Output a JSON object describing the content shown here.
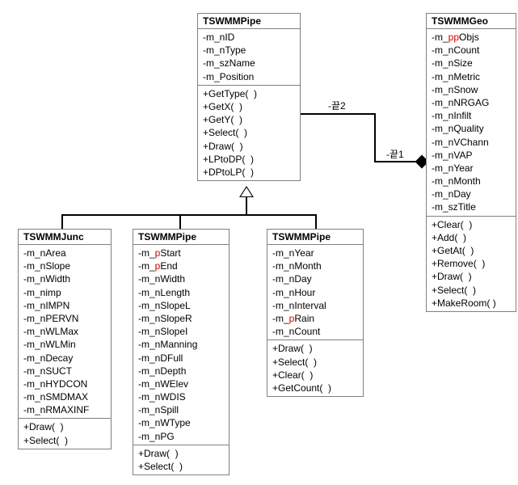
{
  "classes": {
    "parent": {
      "title": "TSWMMPipe",
      "attrs": [
        "-m_nID",
        "-m_nType",
        "-m_szName",
        "-m_Position"
      ],
      "ops": [
        "+GetType(  )",
        "+GetX(  )",
        "+GetY(  )",
        "+Select(  )",
        "+Draw(  )",
        "+LPtoDP(  )",
        "+DPtoLP(  )"
      ]
    },
    "geo": {
      "title": "TSWMMGeo",
      "attrs": [
        "-m_ppObjs",
        "-m_nCount",
        "-m_nSize",
        "-m_nMetric",
        "-m_nSnow",
        "-m_nNRGAG",
        "-m_nInfilt",
        "-m_nQuality",
        "-m_nVChann",
        "-m_nVAP",
        "-m_nYear",
        "-m_nMonth",
        "-m_nDay",
        "-m_szTitle"
      ],
      "ops": [
        "+Clear(  )",
        "+Add(  )",
        "+GetAt(  )",
        "+Remove(  )",
        "+Draw(  )",
        "+Select(  )",
        "+MakeRoom( )"
      ]
    },
    "junc": {
      "title": "TSWMMJunc",
      "attrs": [
        "-m_nArea",
        "-m_nSlope",
        "-m_nWidth",
        "-m_nimp",
        "-m_nIMPN",
        "-m_nPERVN",
        "-m_nWLMax",
        "-m_nWLMin",
        "-m_nDecay",
        "-m_nSUCT",
        "-m_nHYDCON",
        "-m_nSMDMAX",
        "-m_nRMAXINF"
      ],
      "ops": [
        "+Draw(  )",
        "+Select(  )"
      ]
    },
    "pipe2": {
      "title": "TSWMMPipe",
      "attrs": [
        "-m_pStart",
        "-m_pEnd",
        "-m_nWidth",
        "-m_nLength",
        "-m_nSlopeL",
        "-m_nSlopeR",
        "-m_nSlopeI",
        "-m_nManning",
        "-m_nDFull",
        "-m_nDepth",
        "-m_nWElev",
        "-m_nWDIS",
        "-m_nSpill",
        "-m_nWType",
        "-m_nPG"
      ],
      "ops": [
        "+Draw(  )",
        "+Select(  )"
      ]
    },
    "pipe3": {
      "title": "TSWMMPipe",
      "attrs": [
        "-m_nYear",
        "-m_nMonth",
        "-m_nDay",
        "-m_nHour",
        "-m_nInterval",
        "-m_pRain",
        "-m_nCount"
      ],
      "ops": [
        "+Draw(  )",
        "+Select(  )",
        "+Clear(  )",
        "+GetCount(  )"
      ]
    }
  },
  "assoc": {
    "end1": "-끝1",
    "end2": "-끝2"
  }
}
